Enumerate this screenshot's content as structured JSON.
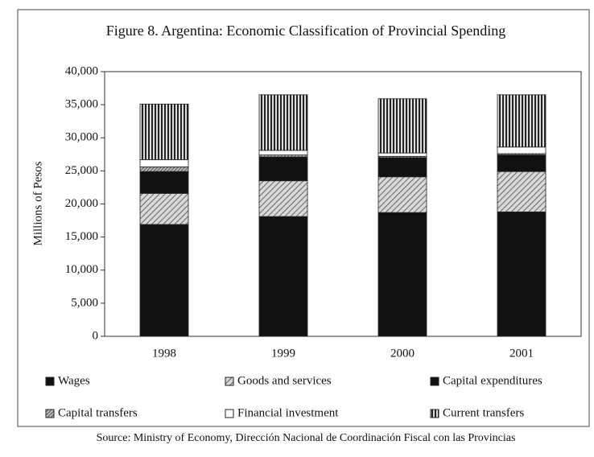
{
  "chart_data": {
    "type": "stacked_bar",
    "title": "Figure 8. Argentina: Economic Classification of Provincial Spending",
    "ylabel": "Millions of Pesos",
    "source": "Source: Ministry of Economy, Dirección Nacional de Coordinación Fiscal con las Provincias",
    "categories": [
      "1998",
      "1999",
      "2000",
      "2001"
    ],
    "ylim": [
      0,
      40000
    ],
    "yticks": [
      0,
      {
        "value": 5000,
        "label": "5,000"
      },
      {
        "value": 10000,
        "label": "10,000"
      },
      {
        "value": 15000,
        "label": "15,000"
      },
      {
        "value": 20000,
        "label": "20,000"
      },
      {
        "value": 25000,
        "label": "25,000"
      },
      {
        "value": 30000,
        "label": "30,000"
      },
      {
        "value": 35000,
        "label": "35,000"
      },
      {
        "value": 40000,
        "label": "40,000"
      }
    ],
    "series": [
      {
        "name": "Wages",
        "color": "#111111",
        "pattern": "none",
        "values": [
          16900,
          18100,
          18700,
          18800
        ]
      },
      {
        "name": "Goods and services",
        "color": "#9a9a9a",
        "pattern": "diagonal",
        "values": [
          4700,
          5400,
          5400,
          6100
        ]
      },
      {
        "name": "Capital expenditures",
        "color": "#111111",
        "pattern": "none",
        "values": [
          3300,
          3600,
          2900,
          2500
        ]
      },
      {
        "name": "Capital transfers",
        "color": "#555555",
        "pattern": "dense",
        "values": [
          700,
          300,
          200,
          200
        ]
      },
      {
        "name": "Financial investment",
        "color": "#ffffff",
        "pattern": "none",
        "values": [
          1100,
          700,
          500,
          1000
        ]
      },
      {
        "name": "Current transfers",
        "color": "#666666",
        "pattern": "vertical",
        "values": [
          8400,
          8400,
          8200,
          7900
        ]
      }
    ]
  }
}
